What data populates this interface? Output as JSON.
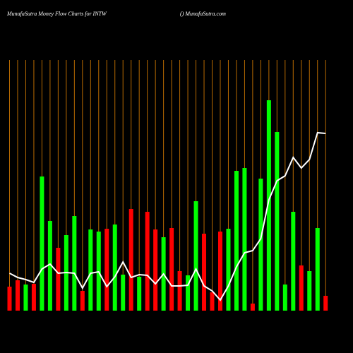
{
  "chart_data": {
    "type": "bar",
    "title": "MunafaSutra  Money Flow  Charts for INTW",
    "subtitle": "() MunafaSutra.com",
    "values": [
      34,
      43,
      37,
      38,
      190,
      127,
      89,
      107,
      134,
      28,
      115,
      112,
      116,
      122,
      51,
      144,
      48,
      140,
      115,
      104,
      117,
      56,
      50,
      155,
      109,
      26,
      112,
      116,
      198,
      202,
      10,
      187,
      298,
      253,
      37,
      140,
      64,
      56,
      117,
      21
    ],
    "bar_colors": [
      "#ff0000",
      "#ff0000",
      "#00ff00",
      "#ff0000",
      "#00ff00",
      "#00ff00",
      "#ff0000",
      "#00ff00",
      "#00ff00",
      "#ff0000",
      "#00ff00",
      "#00ff00",
      "#ff0000",
      "#00ff00",
      "#00ff00",
      "#ff0000",
      "#00ff00",
      "#ff0000",
      "#ff0000",
      "#00ff00",
      "#ff0000",
      "#ff0000",
      "#00ff00",
      "#00ff00",
      "#ff0000",
      "#ff0000",
      "#ff0000",
      "#00ff00",
      "#00ff00",
      "#00ff00",
      "#ff0000",
      "#00ff00",
      "#00ff00",
      "#00ff00",
      "#00ff00",
      "#00ff00",
      "#ff0000",
      "#00ff00",
      "#00ff00",
      "#ff0000"
    ],
    "line": [
      53,
      47,
      44,
      40,
      59,
      66,
      53,
      54,
      53,
      32,
      53,
      55,
      34,
      48,
      69,
      47,
      51,
      50,
      38,
      52,
      35,
      35,
      36,
      59,
      35,
      28,
      15,
      35,
      62,
      82,
      85,
      102,
      157,
      184,
      191,
      217,
      202,
      214,
      252,
      251
    ],
    "line_color": "#ffffff",
    "gridline_color": "#b86a00",
    "ylim": [
      0,
      355
    ]
  }
}
